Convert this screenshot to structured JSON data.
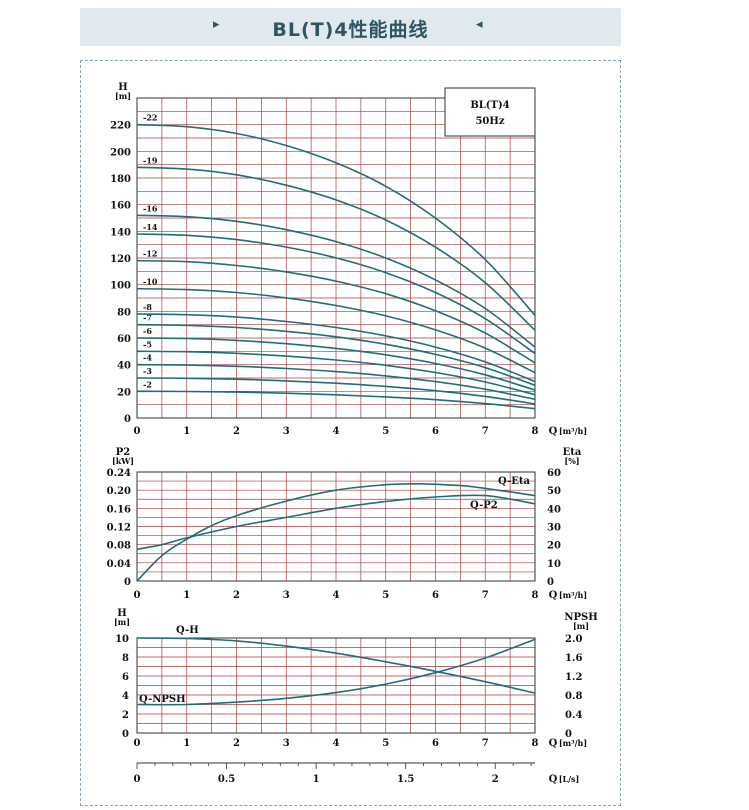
{
  "header": {
    "title": "BL(T)4性能曲线",
    "left_arrow": "▸",
    "right_arrow": "◂"
  },
  "colors": {
    "grid": "#b23a3a",
    "curve": "#1d6f7a",
    "banner": "#dfe9ee"
  },
  "chart_data": [
    {
      "type": "line",
      "legend": [
        "BL(T)4",
        "50Hz"
      ],
      "ylabel": "H",
      "yunit": "[m]",
      "xlabel": "Q",
      "xunit": "[m³/h]",
      "xlim": [
        0,
        8
      ],
      "ylim": [
        0,
        240
      ],
      "xticks": [
        "0",
        "1",
        "2",
        "3",
        "4",
        "5",
        "6",
        "7",
        "8"
      ],
      "yticks": [
        "0",
        "20",
        "40",
        "60",
        "80",
        "100",
        "120",
        "140",
        "160",
        "180",
        "200",
        "220"
      ],
      "x": [
        0,
        1,
        2,
        3,
        4,
        5,
        6,
        7,
        8
      ],
      "series": [
        {
          "name": "-2",
          "values": [
            20,
            19.9,
            19.4,
            18.6,
            17.4,
            15.8,
            13.7,
            10.8,
            7
          ]
        },
        {
          "name": "-3",
          "values": [
            30,
            29.8,
            29.1,
            27.8,
            26.1,
            23.7,
            20.5,
            16.2,
            10.5
          ]
        },
        {
          "name": "-4",
          "values": [
            40,
            39.7,
            38.8,
            37.1,
            34.8,
            31.6,
            27.3,
            21.6,
            14
          ]
        },
        {
          "name": "-5",
          "values": [
            50,
            49.7,
            48.5,
            46.4,
            43.5,
            39.5,
            34.1,
            27,
            17.5
          ]
        },
        {
          "name": "-6",
          "values": [
            60,
            59.6,
            58.2,
            55.7,
            52.2,
            47.4,
            40.9,
            32.4,
            21
          ]
        },
        {
          "name": "-7",
          "values": [
            70,
            69.5,
            67.9,
            65,
            60.9,
            55.3,
            47.7,
            37.8,
            24.5
          ]
        },
        {
          "name": "-8",
          "values": [
            78,
            77.5,
            75.7,
            72.4,
            67.9,
            61.6,
            53.2,
            42.1,
            27.3
          ]
        },
        {
          "name": "-10",
          "values": [
            97,
            96.3,
            94.1,
            90.1,
            84.4,
            76.6,
            66.1,
            52.4,
            34
          ]
        },
        {
          "name": "-12",
          "values": [
            118,
            117.2,
            114.4,
            109.6,
            102.7,
            93.2,
            80.4,
            63.7,
            41.3
          ]
        },
        {
          "name": "-14",
          "values": [
            138,
            137,
            133.8,
            128.2,
            120.1,
            109,
            94.1,
            74.5,
            48.3
          ]
        },
        {
          "name": "-16",
          "values": [
            152,
            151,
            147.5,
            141.2,
            132.3,
            120,
            103.6,
            82.1,
            53.2
          ]
        },
        {
          "name": "-19",
          "values": [
            188,
            186.7,
            182.4,
            174.6,
            163.6,
            148.5,
            128.1,
            101.5,
            65.8
          ]
        },
        {
          "name": "-22",
          "values": [
            220,
            218.5,
            213.4,
            204.4,
            191.4,
            173.8,
            149.9,
            118.8,
            77
          ]
        }
      ]
    },
    {
      "type": "line",
      "ylabel_left": "P2",
      "yunit_left": "[kW]",
      "ylabel_right": "Eta",
      "yunit_right": "[%]",
      "xlabel": "Q",
      "xunit": "[m³/h]",
      "xlim": [
        0,
        8
      ],
      "ylim_left": [
        0,
        0.24
      ],
      "ylim_right": [
        0,
        60
      ],
      "xticks": [
        "0",
        "1",
        "2",
        "3",
        "4",
        "5",
        "6",
        "7",
        "8"
      ],
      "yticks_left": [
        "0",
        "0.04",
        "0.08",
        "0.12",
        "0.16",
        "0.20",
        "0.24"
      ],
      "yticks_right": [
        "0",
        "10",
        "20",
        "30",
        "40",
        "50",
        "60"
      ],
      "series": [
        {
          "name": "Q-Eta",
          "axis": "right",
          "x": [
            0,
            0.5,
            1,
            1.5,
            2,
            3,
            4,
            5,
            5.7,
            6.5,
            7,
            8
          ],
          "values": [
            0,
            14,
            23,
            30.5,
            36,
            44,
            50,
            53,
            53.5,
            52.5,
            51,
            47
          ]
        },
        {
          "name": "Q-P2",
          "axis": "left",
          "x": [
            0,
            0.5,
            1,
            2,
            3,
            4,
            5,
            6,
            7,
            8
          ],
          "values": [
            0.07,
            0.08,
            0.095,
            0.12,
            0.14,
            0.16,
            0.175,
            0.185,
            0.188,
            0.17
          ]
        }
      ]
    },
    {
      "type": "line",
      "ylabel_left": "H",
      "yunit_left": "[m]",
      "ylabel_right": "NPSH",
      "yunit_right": "[m]",
      "xlabel": "Q",
      "xunit": "[m³/h]",
      "xlim": [
        0,
        8
      ],
      "ylim_left": [
        0,
        10
      ],
      "ylim_right": [
        0,
        2.0
      ],
      "xticks": [
        "0",
        "1",
        "2",
        "3",
        "4",
        "5",
        "6",
        "7",
        "8"
      ],
      "yticks_left": [
        "0",
        "2",
        "4",
        "6",
        "8",
        "10"
      ],
      "yticks_right": [
        "0",
        "0.4",
        "0.8",
        "1.2",
        "1.6",
        "2.0"
      ],
      "series": [
        {
          "name": "Q-H",
          "axis": "left",
          "x": [
            0,
            1,
            2,
            3,
            4,
            5,
            6,
            7,
            8
          ],
          "values": [
            10,
            9.95,
            9.7,
            9.15,
            8.4,
            7.5,
            6.5,
            5.4,
            4.2
          ]
        },
        {
          "name": "Q-NPSH",
          "axis": "right",
          "x": [
            0,
            1,
            2,
            3,
            4,
            5,
            6,
            7,
            8
          ],
          "values": [
            0.6,
            0.6,
            0.65,
            0.73,
            0.85,
            1.03,
            1.27,
            1.58,
            1.97
          ]
        }
      ]
    },
    {
      "type": "axis",
      "xlabel": "Q",
      "xunit": "[L/s]",
      "xlim": [
        0,
        2.222
      ],
      "xticks": [
        "0",
        "0.5",
        "1",
        "1.5",
        "2"
      ],
      "xtick_values": [
        0,
        0.5,
        1,
        1.5,
        2
      ]
    }
  ]
}
